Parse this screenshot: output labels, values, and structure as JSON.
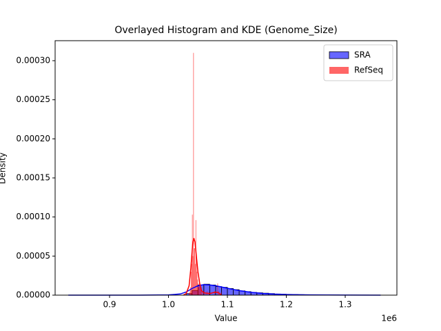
{
  "chart_data": {
    "type": "histogram",
    "title": "Overlayed Histogram and KDE (Genome_Size)",
    "x_label": "Value",
    "y_label": "Density",
    "x_offset_label": "1e6",
    "xlim": [
      807600,
      1387700
    ],
    "ylim": [
      0,
      0.0003256
    ],
    "xticks": [
      {
        "value": 900000,
        "label": "0.9"
      },
      {
        "value": 1000000,
        "label": "1.0"
      },
      {
        "value": 1100000,
        "label": "1.1"
      },
      {
        "value": 1200000,
        "label": "1.2"
      },
      {
        "value": 1300000,
        "label": "1.3"
      }
    ],
    "yticks": [
      {
        "value": 0,
        "label": "0.00000"
      },
      {
        "value": 5e-05,
        "label": "0.00005"
      },
      {
        "value": 0.0001,
        "label": "0.00010"
      },
      {
        "value": 0.00015,
        "label": "0.00015"
      },
      {
        "value": 0.0002,
        "label": "0.00020"
      },
      {
        "value": 0.00025,
        "label": "0.00025"
      },
      {
        "value": 0.0003,
        "label": "0.00030"
      }
    ],
    "legend": "upper right",
    "series": [
      {
        "name": "SRA",
        "color": "#0000ff",
        "edgecolor": "#000000",
        "bins": [
          1030000,
          1040000,
          1050000,
          1060000,
          1070000,
          1080000,
          1090000,
          1100000,
          1110000,
          1120000,
          1130000,
          1140000,
          1150000,
          1160000,
          1170000,
          1180000,
          1190000,
          1200000,
          1210000,
          1220000,
          1230000,
          1240000,
          1250000,
          1260000,
          1270000,
          1280000,
          1290000,
          1300000,
          1310000,
          1320000,
          1330000,
          1340000,
          1350000,
          1360000
        ],
        "values": [
          2e-06,
          6e-06,
          1.3e-05,
          1.4e-05,
          1.3e-05,
          1.1e-05,
          1e-05,
          8.5e-06,
          7e-06,
          5.5e-06,
          4.5e-06,
          3.5e-06,
          3e-06,
          2.5e-06,
          2e-06,
          1.5e-06,
          1.2e-06,
          1e-06,
          8e-07,
          6e-07,
          5e-07,
          4e-07,
          3e-07,
          3e-07,
          2e-07,
          2e-07,
          1e-07,
          1e-07,
          1e-07,
          0,
          1e-07,
          0,
          1e-07
        ],
        "kde": {
          "x": [
            830000,
            950000,
            1000000,
            1020000,
            1030000,
            1040000,
            1050000,
            1060000,
            1070000,
            1080000,
            1090000,
            1100000,
            1120000,
            1140000,
            1160000,
            1180000,
            1200000,
            1240000,
            1300000,
            1360000
          ],
          "values": [
            0,
            0,
            3e-07,
            1.5e-06,
            4e-06,
            8.5e-06,
            1.2e-05,
            1.35e-05,
            1.3e-05,
            1.2e-05,
            1.05e-05,
            8.8e-06,
            5.8e-06,
            3.6e-06,
            2.2e-06,
            1.3e-06,
            8e-07,
            3e-07,
            1e-07,
            0
          ]
        }
      },
      {
        "name": "RefSeq",
        "color": "#ff0000",
        "bins": [
          1035000,
          1036000,
          1037000,
          1038000,
          1039000,
          1040000,
          1041000,
          1042000,
          1043000,
          1044000,
          1045000,
          1046000,
          1047000,
          1048000,
          1049000,
          1050000,
          1051000,
          1052000,
          1053000,
          1054000,
          1055000,
          1056000,
          1057000,
          1058000,
          1059000,
          1060000,
          1061000,
          1062000,
          1063000,
          1064000,
          1065000,
          1066000,
          1067000,
          1068000,
          1069000,
          1070000,
          1071000,
          1072000,
          1073000,
          1074000,
          1075000,
          1076000,
          1077000,
          1078000,
          1079000,
          1080000,
          1081000,
          1082000,
          1083000,
          1084000,
          1085000,
          1086000,
          1087000,
          1088000,
          1089000,
          1090000
        ],
        "values": [
          3e-06,
          5e-06,
          1e-05,
          3e-05,
          4e-05,
          0.000103,
          5e-05,
          0.00031,
          6e-05,
          6e-05,
          4e-05,
          9.6e-05,
          5e-05,
          3e-05,
          2e-05,
          1.5e-05,
          1e-05,
          2e-05,
          1e-05,
          8e-06,
          1e-05,
          5e-06,
          0,
          4e-06,
          0,
          6e-06,
          0,
          0,
          3e-06,
          0,
          5e-06,
          0,
          0,
          4e-06,
          0,
          0,
          0,
          0,
          0,
          0,
          0,
          0,
          0,
          5e-06,
          0,
          0,
          0,
          0,
          1.5e-05,
          0,
          5e-06,
          0,
          0,
          0,
          4e-06
        ],
        "kde": {
          "x": [
            1025000,
            1030000,
            1035000,
            1038000,
            1041000,
            1043000,
            1045000,
            1048000,
            1050000,
            1053000,
            1056000,
            1060000,
            1070000,
            1080000,
            1085000,
            1090000
          ],
          "values": [
            0,
            2e-06,
            1.2e-05,
            3.5e-05,
            6.5e-05,
            7.3e-05,
            6.8e-05,
            4.5e-05,
            3e-05,
            1.5e-05,
            6e-06,
            3e-06,
            2e-06,
            4e-06,
            3e-06,
            0
          ]
        }
      }
    ]
  }
}
